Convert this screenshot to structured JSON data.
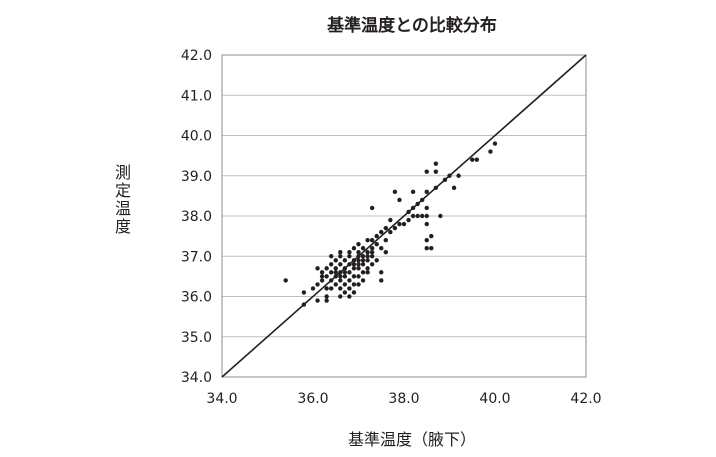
{
  "chart_data": {
    "type": "scatter",
    "title": "基準温度との比較分布",
    "xlabel": "基準温度（腋下）",
    "ylabel": "測定温度",
    "xlim": [
      34.0,
      42.0
    ],
    "ylim": [
      34.0,
      42.0
    ],
    "x_ticks": [
      "34.0",
      "36.0",
      "38.0",
      "40.0",
      "42.0"
    ],
    "y_ticks": [
      "34.0",
      "35.0",
      "36.0",
      "37.0",
      "38.0",
      "39.0",
      "40.0",
      "41.0",
      "42.0"
    ],
    "grid": "horizontal",
    "reference_line": {
      "from": [
        34.0,
        34.0
      ],
      "to": [
        42.0,
        42.0
      ]
    },
    "points": [
      [
        35.4,
        36.4
      ],
      [
        35.8,
        36.1
      ],
      [
        35.8,
        35.8
      ],
      [
        36.0,
        36.2
      ],
      [
        36.1,
        36.7
      ],
      [
        36.1,
        36.3
      ],
      [
        36.1,
        35.9
      ],
      [
        36.2,
        36.5
      ],
      [
        36.2,
        36.4
      ],
      [
        36.2,
        36.6
      ],
      [
        36.3,
        36.7
      ],
      [
        36.3,
        36.2
      ],
      [
        36.3,
        36.0
      ],
      [
        36.3,
        35.9
      ],
      [
        36.3,
        36.5
      ],
      [
        36.4,
        36.8
      ],
      [
        36.4,
        37.0
      ],
      [
        36.4,
        36.6
      ],
      [
        36.4,
        36.4
      ],
      [
        36.4,
        36.2
      ],
      [
        36.5,
        36.9
      ],
      [
        36.5,
        36.7
      ],
      [
        36.5,
        36.5
      ],
      [
        36.5,
        36.3
      ],
      [
        36.5,
        36.6
      ],
      [
        36.6,
        37.1
      ],
      [
        36.6,
        37.0
      ],
      [
        36.6,
        36.8
      ],
      [
        36.6,
        36.6
      ],
      [
        36.6,
        36.4
      ],
      [
        36.6,
        36.2
      ],
      [
        36.6,
        36.0
      ],
      [
        36.6,
        36.5
      ],
      [
        36.7,
        36.9
      ],
      [
        36.7,
        36.7
      ],
      [
        36.7,
        36.5
      ],
      [
        36.7,
        36.3
      ],
      [
        36.7,
        36.1
      ],
      [
        36.7,
        36.6
      ],
      [
        36.8,
        37.1
      ],
      [
        36.8,
        37.0
      ],
      [
        36.8,
        36.8
      ],
      [
        36.8,
        36.6
      ],
      [
        36.8,
        36.4
      ],
      [
        36.8,
        36.2
      ],
      [
        36.8,
        36.0
      ],
      [
        36.9,
        37.2
      ],
      [
        36.9,
        36.9
      ],
      [
        36.9,
        36.7
      ],
      [
        36.9,
        36.5
      ],
      [
        36.9,
        36.3
      ],
      [
        36.9,
        36.1
      ],
      [
        36.9,
        36.8
      ],
      [
        37.0,
        37.3
      ],
      [
        37.0,
        37.1
      ],
      [
        37.0,
        36.9
      ],
      [
        37.0,
        36.7
      ],
      [
        37.0,
        36.5
      ],
      [
        37.0,
        36.3
      ],
      [
        37.0,
        37.0
      ],
      [
        37.0,
        36.8
      ],
      [
        37.1,
        37.2
      ],
      [
        37.1,
        37.0
      ],
      [
        37.1,
        36.8
      ],
      [
        37.1,
        36.6
      ],
      [
        37.1,
        36.4
      ],
      [
        37.1,
        36.9
      ],
      [
        37.2,
        37.4
      ],
      [
        37.2,
        37.1
      ],
      [
        37.2,
        36.9
      ],
      [
        37.2,
        36.7
      ],
      [
        37.2,
        36.6
      ],
      [
        37.2,
        37.0
      ],
      [
        37.3,
        38.2
      ],
      [
        37.3,
        37.4
      ],
      [
        37.3,
        37.2
      ],
      [
        37.3,
        37.0
      ],
      [
        37.3,
        36.8
      ],
      [
        37.3,
        37.1
      ],
      [
        37.4,
        37.5
      ],
      [
        37.4,
        37.3
      ],
      [
        37.4,
        36.9
      ],
      [
        37.5,
        37.6
      ],
      [
        37.5,
        37.2
      ],
      [
        37.5,
        36.6
      ],
      [
        37.5,
        36.4
      ],
      [
        37.6,
        37.7
      ],
      [
        37.6,
        37.4
      ],
      [
        37.6,
        37.1
      ],
      [
        37.7,
        37.9
      ],
      [
        37.7,
        37.6
      ],
      [
        37.8,
        38.6
      ],
      [
        37.8,
        37.7
      ],
      [
        37.9,
        37.8
      ],
      [
        37.9,
        38.4
      ],
      [
        38.0,
        37.8
      ],
      [
        38.1,
        38.1
      ],
      [
        38.1,
        37.9
      ],
      [
        38.2,
        38.6
      ],
      [
        38.2,
        38.2
      ],
      [
        38.2,
        38.0
      ],
      [
        38.3,
        38.3
      ],
      [
        38.3,
        38.0
      ],
      [
        38.4,
        38.4
      ],
      [
        38.4,
        38.0
      ],
      [
        38.5,
        39.1
      ],
      [
        38.5,
        38.6
      ],
      [
        38.5,
        38.2
      ],
      [
        38.5,
        38.0
      ],
      [
        38.5,
        37.8
      ],
      [
        38.5,
        37.4
      ],
      [
        38.5,
        37.2
      ],
      [
        38.6,
        37.5
      ],
      [
        38.6,
        37.2
      ],
      [
        38.7,
        39.3
      ],
      [
        38.7,
        39.1
      ],
      [
        38.7,
        38.7
      ],
      [
        38.8,
        38.0
      ],
      [
        38.9,
        38.9
      ],
      [
        39.0,
        39.0
      ],
      [
        39.1,
        38.7
      ],
      [
        39.2,
        39.0
      ],
      [
        39.5,
        39.4
      ],
      [
        39.6,
        39.4
      ],
      [
        39.9,
        39.6
      ],
      [
        40.0,
        39.8
      ]
    ]
  }
}
